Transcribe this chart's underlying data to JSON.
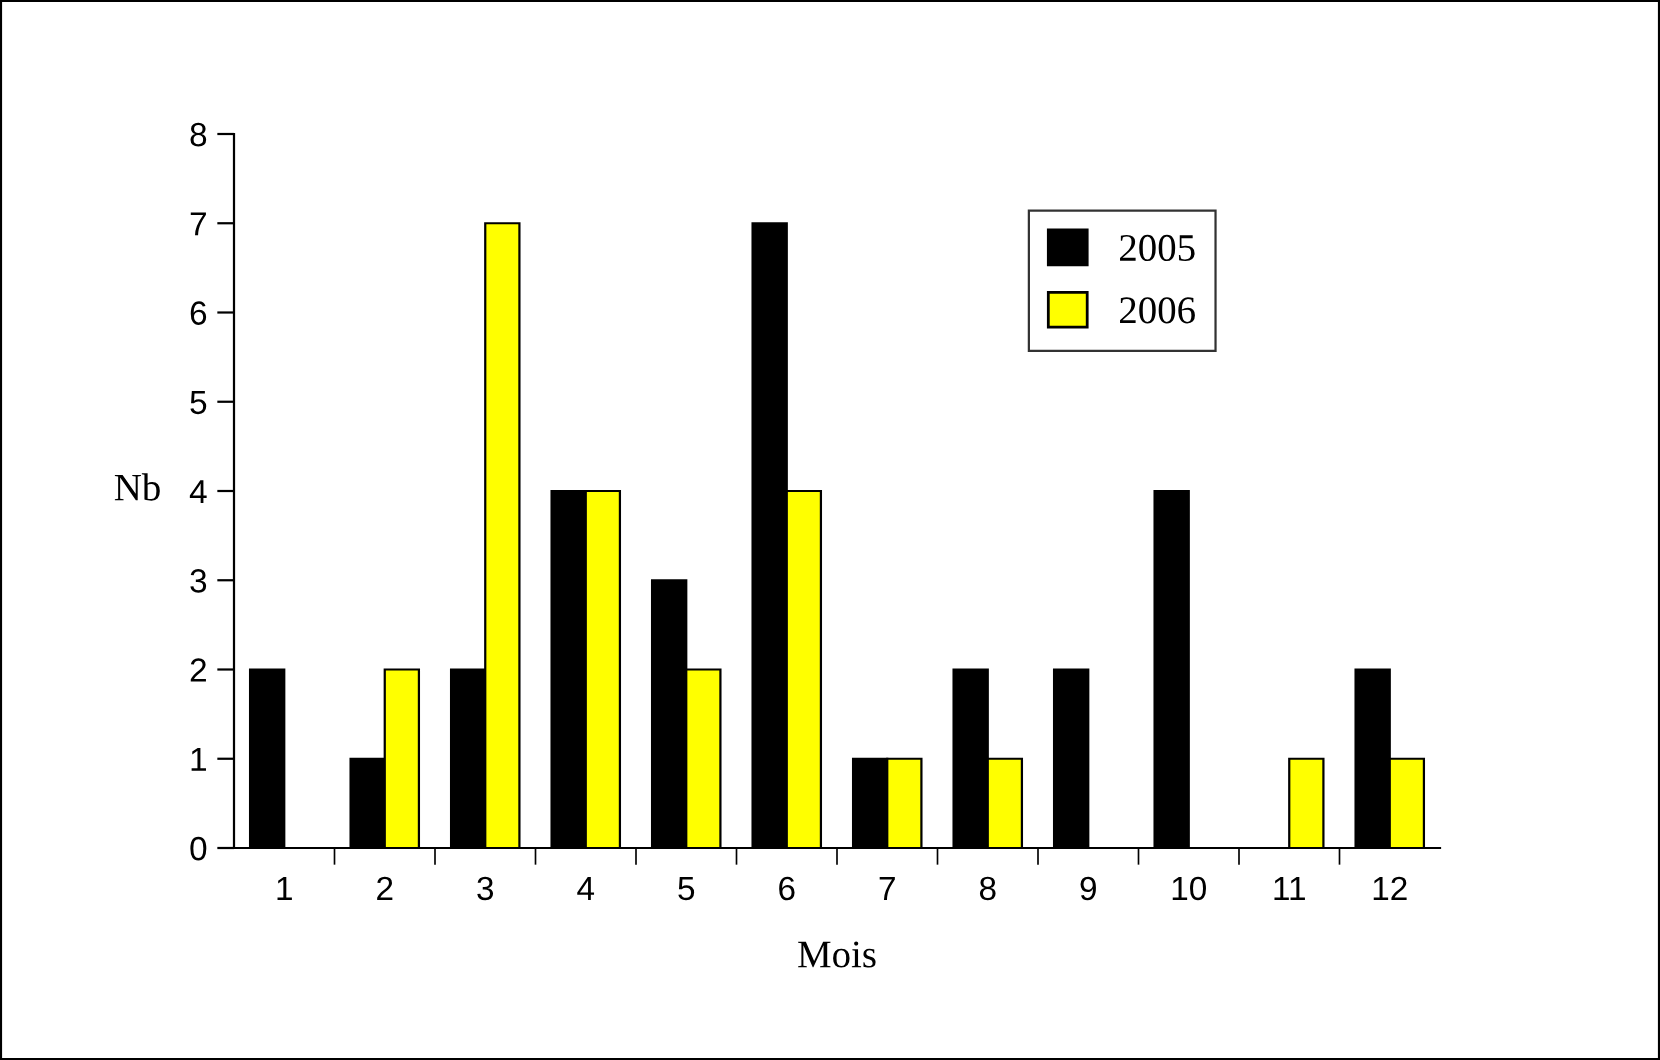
{
  "chart_data": {
    "type": "bar",
    "xlabel": "Mois",
    "ylabel": "Nb",
    "categories": [
      "1",
      "2",
      "3",
      "4",
      "5",
      "6",
      "7",
      "8",
      "9",
      "10",
      "11",
      "12"
    ],
    "series": [
      {
        "name": "2005",
        "color": "#000000",
        "values": [
          2,
          1,
          2,
          4,
          3,
          7,
          1,
          2,
          2,
          4,
          0,
          2
        ]
      },
      {
        "name": "2006",
        "color": "#ffff00",
        "values": [
          0,
          2,
          7,
          4,
          2,
          4,
          1,
          1,
          0,
          0,
          1,
          1
        ]
      }
    ],
    "ylim": [
      0,
      8
    ],
    "yticks": [
      0,
      1,
      2,
      3,
      4,
      5,
      6,
      7,
      8
    ],
    "grid": false,
    "legend": "top right"
  }
}
